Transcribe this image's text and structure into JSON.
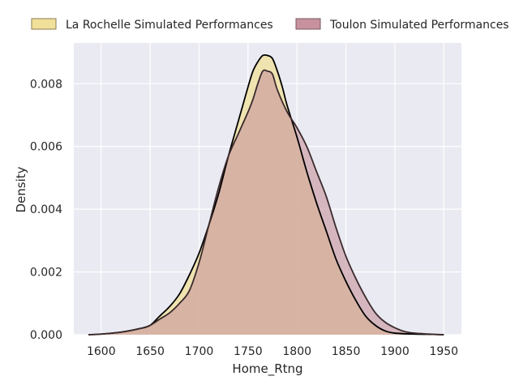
{
  "chart_data": {
    "type": "area",
    "xlabel": "Home_Rtng",
    "ylabel": "Density",
    "xlim": [
      1572,
      1968
    ],
    "ylim": [
      0,
      0.0093
    ],
    "x_ticks": [
      1600,
      1650,
      1700,
      1750,
      1800,
      1850,
      1900,
      1950
    ],
    "x_tick_labels": [
      "1600",
      "1650",
      "1700",
      "1750",
      "1800",
      "1850",
      "1900",
      "1950"
    ],
    "y_ticks": [
      0,
      0.002,
      0.004,
      0.006,
      0.008
    ],
    "y_tick_labels": [
      "0.000",
      "0.002",
      "0.004",
      "0.006",
      "0.008"
    ],
    "grid": true,
    "legend_position": "top",
    "colors": {
      "background": "#eaeaf2",
      "grid": "#ffffff",
      "la_rochelle_fill": "#f0e09a",
      "la_rochelle_line": "#000000",
      "toulon_fill": "#c7929d",
      "toulon_line": "#3a2a2c"
    },
    "series": [
      {
        "name": "La Rochelle Simulated Performances",
        "x": [
          1587,
          1600,
          1620,
          1640,
          1650,
          1660,
          1670,
          1680,
          1690,
          1700,
          1710,
          1720,
          1730,
          1740,
          1750,
          1755,
          1760,
          1765,
          1770,
          1775,
          1780,
          1785,
          1790,
          1800,
          1810,
          1820,
          1830,
          1840,
          1850,
          1860,
          1870,
          1880,
          1890,
          1900,
          1920,
          1940,
          1950
        ],
        "y": [
          0.0,
          2e-05,
          8e-05,
          0.0002,
          0.0003,
          0.0006,
          0.0009,
          0.0013,
          0.0019,
          0.0026,
          0.0035,
          0.0045,
          0.0057,
          0.0068,
          0.0079,
          0.0084,
          0.0087,
          0.0089,
          0.0089,
          0.0088,
          0.0084,
          0.0079,
          0.0073,
          0.0063,
          0.0052,
          0.0042,
          0.0033,
          0.0024,
          0.0017,
          0.0011,
          0.0006,
          0.0003,
          0.00012,
          5e-05,
          2e-05,
          1e-05,
          0.0
        ]
      },
      {
        "name": "Toulon Simulated Performances",
        "x": [
          1587,
          1600,
          1620,
          1640,
          1650,
          1660,
          1670,
          1680,
          1690,
          1700,
          1710,
          1720,
          1730,
          1740,
          1750,
          1755,
          1760,
          1765,
          1770,
          1775,
          1780,
          1790,
          1800,
          1810,
          1820,
          1830,
          1840,
          1850,
          1860,
          1870,
          1880,
          1890,
          1900,
          1910,
          1920,
          1940,
          1950
        ],
        "y": [
          0.0,
          2e-05,
          8e-05,
          0.0002,
          0.0003,
          0.0005,
          0.0007,
          0.001,
          0.0014,
          0.0023,
          0.0035,
          0.0047,
          0.0057,
          0.0064,
          0.0071,
          0.0075,
          0.008,
          0.0084,
          0.0084,
          0.0083,
          0.0078,
          0.0071,
          0.0066,
          0.006,
          0.0052,
          0.0044,
          0.0034,
          0.0025,
          0.0018,
          0.0012,
          0.0007,
          0.0004,
          0.00022,
          0.0001,
          5e-05,
          1e-05,
          0.0
        ]
      }
    ]
  }
}
